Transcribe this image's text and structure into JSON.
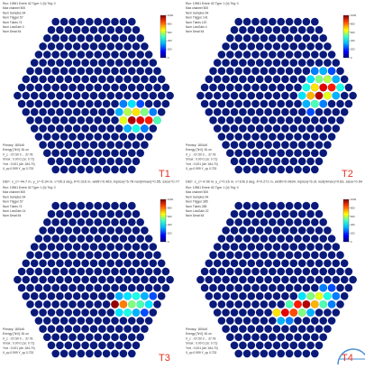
{
  "panels": [
    {
      "label": "T1",
      "header": [
        "Run: 10961 Event: 62 Type: 1 (b) Trig: 0",
        "Max channel 500",
        "Num Samples 64",
        "Num Trigger 57",
        "Num Tubes 74",
        "Num LowGain 0",
        "Num Dead 64"
      ],
      "footer": [
        "Primary: 1801d0",
        "Energy [TeV]: 81 on",
        "X_c : -67.50 0 ... 37.78",
        "Xmax : 0.00 0 (1e: 0.71)",
        "Yrot : 0.001 (dir: 184.70)",
        "X_cp 0.999 Y_cp 0.733"
      ],
      "caption": null,
      "zlim": [
        0,
        1000
      ],
      "zticks": [
        0,
        200,
        400,
        600,
        800,
        1000
      ],
      "hits": [
        {
          "row": 10,
          "col": 12,
          "q": 250
        },
        {
          "row": 10,
          "col": 13,
          "q": 350
        },
        {
          "row": 10,
          "col": 14,
          "q": 200
        },
        {
          "row": 11,
          "col": 11,
          "q": 300
        },
        {
          "row": 11,
          "col": 12,
          "q": 550
        },
        {
          "row": 11,
          "col": 13,
          "q": 650
        },
        {
          "row": 11,
          "col": 14,
          "q": 500
        },
        {
          "row": 11,
          "col": 15,
          "q": 250
        },
        {
          "row": 12,
          "col": 11,
          "q": 600
        },
        {
          "row": 12,
          "col": 12,
          "q": 950
        },
        {
          "row": 12,
          "col": 13,
          "q": 900
        },
        {
          "row": 12,
          "col": 14,
          "q": 850
        },
        {
          "row": 12,
          "col": 15,
          "q": 450
        },
        {
          "row": 13,
          "col": 11,
          "q": 300
        },
        {
          "row": 13,
          "col": 12,
          "q": 400
        },
        {
          "row": 13,
          "col": 13,
          "q": 250
        }
      ]
    },
    {
      "label": "T2",
      "header": [
        "Run: 10961 Event: 62 Type: 1 (b) Trig: 0",
        "Max channel 500",
        "Num Samples 64",
        "Num Trigger 141",
        "Num Tubes 120",
        "Num LowGain 4",
        "Num Dead 64"
      ],
      "footer": [
        "Primary: 1801d0",
        "Energy [TeV]: 81 on",
        "X_c : -67.50 0 ... 37.78",
        "Xmax : 0.00 0 (1e: 0.71)",
        "Yrot : 0.001 (dir: 184.70)",
        "X_cp 0.999 Y_cp 0.733"
      ],
      "caption": null,
      "zlim": [
        0,
        1000
      ],
      "zticks": [
        0,
        200,
        400,
        600,
        800,
        1000
      ],
      "hits": [
        {
          "row": 6,
          "col": 12,
          "q": 250
        },
        {
          "row": 6,
          "col": 13,
          "q": 300
        },
        {
          "row": 6,
          "col": 14,
          "q": 200
        },
        {
          "row": 7,
          "col": 12,
          "q": 350
        },
        {
          "row": 7,
          "col": 13,
          "q": 500
        },
        {
          "row": 7,
          "col": 14,
          "q": 550
        },
        {
          "row": 7,
          "col": 15,
          "q": 300
        },
        {
          "row": 8,
          "col": 12,
          "q": 400
        },
        {
          "row": 8,
          "col": 13,
          "q": 650
        },
        {
          "row": 8,
          "col": 14,
          "q": 900
        },
        {
          "row": 8,
          "col": 15,
          "q": 850
        },
        {
          "row": 8,
          "col": 16,
          "q": 400
        },
        {
          "row": 9,
          "col": 12,
          "q": 350
        },
        {
          "row": 9,
          "col": 13,
          "q": 700
        },
        {
          "row": 9,
          "col": 14,
          "q": 950
        },
        {
          "row": 9,
          "col": 15,
          "q": 600
        },
        {
          "row": 9,
          "col": 16,
          "q": 300
        },
        {
          "row": 10,
          "col": 12,
          "q": 300
        },
        {
          "row": 10,
          "col": 13,
          "q": 450
        },
        {
          "row": 10,
          "col": 14,
          "q": 250
        },
        {
          "row": 11,
          "col": 12,
          "q": 200
        }
      ]
    },
    {
      "label": "T3",
      "header": [
        "Run: 10961 Event: 62 Type: 1 (b) Trig: 0",
        "Max channel 500",
        "Num Samples 64",
        "Num Trigger 57",
        "Num Tubes 74",
        "Num LowGain 14",
        "Num Dead 64"
      ],
      "footer": [
        "Primary: 1801d0",
        "Energy [TeV]: 81 on",
        "X_c : -67.50 0 ... 37.78",
        "Xmax : 0.00 0 (1e: 0.71)",
        "Yrot : 0.001 (dir: 184.70)",
        "X_cp 0.999 Y_cp 0.733"
      ],
      "caption": "DEF: x_c=-44.7 m, y_c=-5.34 m, ν=95.3 deg, δ=0.316 m, width=0.463, ln(size)=5.78 nsd(Hmax)=0.55, ssize=0.77",
      "zlim": [
        0,
        1000
      ],
      "zticks": [
        0,
        200,
        400,
        600,
        800,
        1000
      ],
      "hits": [
        {
          "row": 11,
          "col": 11,
          "q": 300
        },
        {
          "row": 11,
          "col": 12,
          "q": 350
        },
        {
          "row": 11,
          "col": 13,
          "q": 400
        },
        {
          "row": 11,
          "col": 14,
          "q": 300
        },
        {
          "row": 11,
          "col": 15,
          "q": 200
        },
        {
          "row": 12,
          "col": 10,
          "q": 980
        },
        {
          "row": 12,
          "col": 11,
          "q": 750
        },
        {
          "row": 12,
          "col": 12,
          "q": 500
        },
        {
          "row": 12,
          "col": 13,
          "q": 450
        },
        {
          "row": 12,
          "col": 14,
          "q": 350
        },
        {
          "row": 13,
          "col": 10,
          "q": 350
        },
        {
          "row": 13,
          "col": 11,
          "q": 400
        },
        {
          "row": 13,
          "col": 12,
          "q": 300
        },
        {
          "row": 13,
          "col": 13,
          "q": 200
        }
      ]
    },
    {
      "label": "T4",
      "header": [
        "Run: 10961 Event: 62 Type: 1 (b) Trig: 0",
        "Max channel 500",
        "Num Samples 64",
        "Num Trigger 385",
        "Num Tubes 285",
        "Num LowGain 22",
        "Num Dead 64"
      ],
      "footer": [
        "Primary: 1801d0",
        "Energy [TeV]: 81 on",
        "X_c : -67.50 0 ... 37.78",
        "Xmax : 0.00 0 (1e: 0.71)",
        "Yrot : 0.001 (dir: 184.70)",
        "X_cp 0.999 Y_cp 0.733"
      ],
      "caption": "DEF: x_c=-4.99 m, y_c=0.16 m, ν=106.3 deg, δ=0.271 m, width=0.0834, ln(size)=6.31 nsd(Hmax)=0.83, ssize=0.94",
      "zlim": [
        0,
        1000
      ],
      "zticks": [
        0,
        200,
        400,
        600,
        800,
        1000
      ],
      "hits": [
        {
          "row": 10,
          "col": 14,
          "q": 250
        },
        {
          "row": 10,
          "col": 15,
          "q": 200
        },
        {
          "row": 11,
          "col": 11,
          "q": 350
        },
        {
          "row": 11,
          "col": 12,
          "q": 500
        },
        {
          "row": 11,
          "col": 13,
          "q": 600
        },
        {
          "row": 11,
          "col": 14,
          "q": 400
        },
        {
          "row": 11,
          "col": 15,
          "q": 250
        },
        {
          "row": 12,
          "col": 9,
          "q": 450
        },
        {
          "row": 12,
          "col": 10,
          "q": 850
        },
        {
          "row": 12,
          "col": 11,
          "q": 950
        },
        {
          "row": 12,
          "col": 12,
          "q": 700
        },
        {
          "row": 12,
          "col": 13,
          "q": 450
        },
        {
          "row": 12,
          "col": 14,
          "q": 250
        },
        {
          "row": 13,
          "col": 7,
          "q": 650
        },
        {
          "row": 13,
          "col": 8,
          "q": 900
        },
        {
          "row": 13,
          "col": 9,
          "q": 800
        },
        {
          "row": 13,
          "col": 10,
          "q": 500
        },
        {
          "row": 13,
          "col": 11,
          "q": 300
        },
        {
          "row": 14,
          "col": 7,
          "q": 300
        },
        {
          "row": 14,
          "col": 8,
          "q": 250
        }
      ]
    }
  ]
}
